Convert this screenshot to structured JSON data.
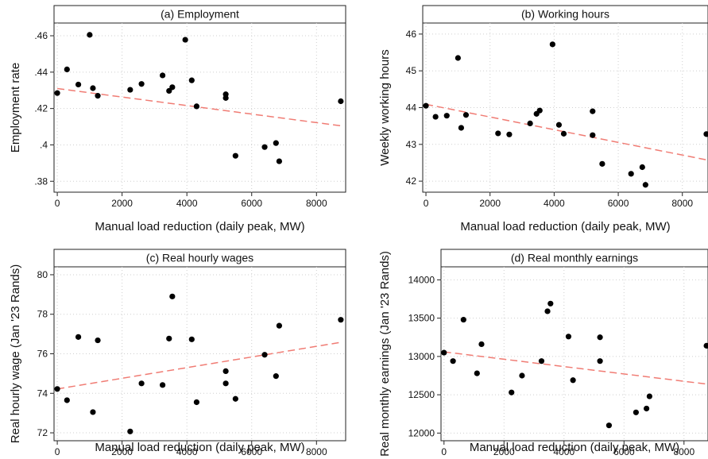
{
  "chart_data": [
    {
      "type": "scatter",
      "title": "(a) Employment",
      "xlabel": "Manual load reduction (daily peak, MW)",
      "ylabel": "Employment rate",
      "xlim": [
        -100,
        8900
      ],
      "ylim": [
        0.374,
        0.467
      ],
      "xticks": [
        0,
        2000,
        4000,
        6000,
        8000
      ],
      "xtick_labels": [
        "0",
        "2000",
        "4000",
        "6000",
        "8000"
      ],
      "yticks": [
        0.38,
        0.4,
        0.42,
        0.44,
        0.46
      ],
      "ytick_labels": [
        ".38",
        ".4",
        ".42",
        ".44",
        ".46"
      ],
      "grid": true,
      "points": [
        {
          "x": 0,
          "y": 0.4285
        },
        {
          "x": 300,
          "y": 0.4415
        },
        {
          "x": 650,
          "y": 0.4332
        },
        {
          "x": 1000,
          "y": 0.4605
        },
        {
          "x": 1100,
          "y": 0.4312
        },
        {
          "x": 1250,
          "y": 0.427
        },
        {
          "x": 2250,
          "y": 0.4303
        },
        {
          "x": 2600,
          "y": 0.4335
        },
        {
          "x": 3250,
          "y": 0.4382
        },
        {
          "x": 3450,
          "y": 0.4297
        },
        {
          "x": 3550,
          "y": 0.4317
        },
        {
          "x": 3950,
          "y": 0.4578
        },
        {
          "x": 4150,
          "y": 0.4355
        },
        {
          "x": 4300,
          "y": 0.4212
        },
        {
          "x": 5200,
          "y": 0.4278
        },
        {
          "x": 5200,
          "y": 0.4258
        },
        {
          "x": 5500,
          "y": 0.394
        },
        {
          "x": 6400,
          "y": 0.3988
        },
        {
          "x": 6750,
          "y": 0.401
        },
        {
          "x": 6850,
          "y": 0.391
        },
        {
          "x": 8750,
          "y": 0.424
        }
      ],
      "fit": {
        "x": [
          0,
          8750
        ],
        "y": [
          0.431,
          0.4105
        ]
      }
    },
    {
      "type": "scatter",
      "title": "(b) Working hours",
      "xlabel": "Manual load reduction (daily peak, MW)",
      "ylabel": "Weekly working hours",
      "xlim": [
        -100,
        8800
      ],
      "ylim": [
        41.7,
        46.3
      ],
      "xticks": [
        0,
        2000,
        4000,
        6000,
        8000
      ],
      "xtick_labels": [
        "0",
        "2000",
        "4000",
        "6000",
        "8000"
      ],
      "yticks": [
        42,
        43,
        44,
        45,
        46
      ],
      "ytick_labels": [
        "42",
        "43",
        "44",
        "45",
        "46"
      ],
      "grid": true,
      "points": [
        {
          "x": 0,
          "y": 44.05
        },
        {
          "x": 300,
          "y": 43.75
        },
        {
          "x": 650,
          "y": 43.78
        },
        {
          "x": 1000,
          "y": 45.35
        },
        {
          "x": 1100,
          "y": 43.45
        },
        {
          "x": 1250,
          "y": 43.8
        },
        {
          "x": 2250,
          "y": 43.3
        },
        {
          "x": 2600,
          "y": 43.27
        },
        {
          "x": 3250,
          "y": 43.57
        },
        {
          "x": 3450,
          "y": 43.83
        },
        {
          "x": 3550,
          "y": 43.92
        },
        {
          "x": 3950,
          "y": 45.72
        },
        {
          "x": 4150,
          "y": 43.53
        },
        {
          "x": 4300,
          "y": 43.29
        },
        {
          "x": 5200,
          "y": 43.9
        },
        {
          "x": 5200,
          "y": 43.25
        },
        {
          "x": 5500,
          "y": 42.47
        },
        {
          "x": 6400,
          "y": 42.2
        },
        {
          "x": 6750,
          "y": 42.38
        },
        {
          "x": 6850,
          "y": 41.9
        },
        {
          "x": 8750,
          "y": 43.28
        }
      ],
      "fit": {
        "x": [
          0,
          8750
        ],
        "y": [
          44.09,
          42.58
        ]
      }
    },
    {
      "type": "scatter",
      "title": "(c) Real hourly wages",
      "xlabel": "Manual load reduction (daily peak, MW)",
      "ylabel": "Real hourly wage (Jan '23 Rands)",
      "xlim": [
        -100,
        8900
      ],
      "ylim": [
        71.6,
        80.4
      ],
      "xticks": [
        0,
        2000,
        4000,
        6000,
        8000
      ],
      "xtick_labels": [
        "0",
        "2000",
        "4000",
        "6000",
        "8000"
      ],
      "yticks": [
        72,
        74,
        76,
        78,
        80
      ],
      "ytick_labels": [
        "72",
        "74",
        "76",
        "78",
        "80"
      ],
      "grid": true,
      "points": [
        {
          "x": 0,
          "y": 74.22
        },
        {
          "x": 300,
          "y": 73.65
        },
        {
          "x": 650,
          "y": 76.85
        },
        {
          "x": 1100,
          "y": 73.05
        },
        {
          "x": 1250,
          "y": 76.68
        },
        {
          "x": 2250,
          "y": 72.07
        },
        {
          "x": 2600,
          "y": 74.5
        },
        {
          "x": 3250,
          "y": 74.42
        },
        {
          "x": 3450,
          "y": 76.77
        },
        {
          "x": 3550,
          "y": 78.9
        },
        {
          "x": 4150,
          "y": 76.73
        },
        {
          "x": 4300,
          "y": 73.55
        },
        {
          "x": 5200,
          "y": 75.12
        },
        {
          "x": 5200,
          "y": 74.5
        },
        {
          "x": 5500,
          "y": 73.72
        },
        {
          "x": 6400,
          "y": 75.95
        },
        {
          "x": 6750,
          "y": 74.87
        },
        {
          "x": 6850,
          "y": 77.42
        },
        {
          "x": 8750,
          "y": 77.72
        }
      ],
      "fit": {
        "x": [
          0,
          8750
        ],
        "y": [
          74.22,
          76.58
        ]
      }
    },
    {
      "type": "scatter",
      "title": "(d) Real monthly earnings",
      "xlabel": "Manual load reduction (daily peak, MW)",
      "ylabel": "Real monthly earnings (Jan '23 Rands)",
      "xlim": [
        -100,
        8800
      ],
      "ylim": [
        11900,
        14170
      ],
      "xticks": [
        0,
        2000,
        4000,
        6000,
        8000
      ],
      "xtick_labels": [
        "0",
        "2000",
        "4000",
        "6000",
        "8000"
      ],
      "yticks": [
        12000,
        12500,
        13000,
        13500,
        14000
      ],
      "ytick_labels": [
        "12000",
        "12500",
        "13000",
        "13500",
        "14000"
      ],
      "grid": true,
      "points": [
        {
          "x": 0,
          "y": 13050
        },
        {
          "x": 300,
          "y": 12940
        },
        {
          "x": 650,
          "y": 13480
        },
        {
          "x": 1100,
          "y": 12780
        },
        {
          "x": 1250,
          "y": 13160
        },
        {
          "x": 2250,
          "y": 12530
        },
        {
          "x": 2600,
          "y": 12750
        },
        {
          "x": 3250,
          "y": 12940
        },
        {
          "x": 3450,
          "y": 13590
        },
        {
          "x": 3550,
          "y": 13690
        },
        {
          "x": 4150,
          "y": 13260
        },
        {
          "x": 4300,
          "y": 12690
        },
        {
          "x": 5200,
          "y": 13250
        },
        {
          "x": 5200,
          "y": 12940
        },
        {
          "x": 5500,
          "y": 12100
        },
        {
          "x": 6400,
          "y": 12270
        },
        {
          "x": 6750,
          "y": 12320
        },
        {
          "x": 6850,
          "y": 12480
        },
        {
          "x": 8750,
          "y": 13140
        }
      ],
      "fit": {
        "x": [
          0,
          8750
        ],
        "y": [
          13060,
          12640
        ]
      }
    }
  ]
}
